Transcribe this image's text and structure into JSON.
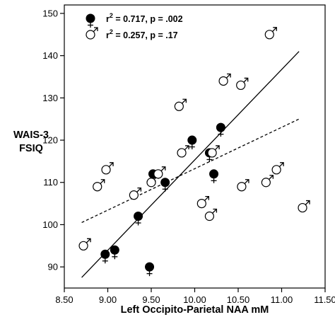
{
  "chart_data": {
    "type": "scatter",
    "title": "",
    "xlabel": "Left Occipito-Parietal NAA mM",
    "ylabel": [
      "WAIS-3",
      "FSIQ"
    ],
    "xlim": [
      8.5,
      11.5
    ],
    "ylim": [
      85,
      152
    ],
    "xticks": [
      "8.50",
      "9.00",
      "9.50",
      "10.00",
      "10.50",
      "11.00",
      "11.50"
    ],
    "yticks": [
      "90",
      "100",
      "110",
      "120",
      "130",
      "140",
      "150"
    ],
    "grid": false,
    "legend_position": "top-left",
    "legend": [
      {
        "symbol": "female",
        "r2_label": "r",
        "r2_sup": "2",
        "stat": " = 0.717, p = .002"
      },
      {
        "symbol": "male",
        "r2_label": "r",
        "r2_sup": "2",
        "stat": " = 0.257, p = .17"
      }
    ],
    "series": [
      {
        "symbol": "female",
        "fit": "solid",
        "fit_line": {
          "x": [
            8.7,
            11.2
          ],
          "y": [
            87.5,
            141
          ]
        },
        "points": [
          {
            "x": 8.97,
            "y": 93
          },
          {
            "x": 9.08,
            "y": 94
          },
          {
            "x": 9.35,
            "y": 102
          },
          {
            "x": 9.48,
            "y": 90
          },
          {
            "x": 9.52,
            "y": 112
          },
          {
            "x": 9.66,
            "y": 110
          },
          {
            "x": 9.97,
            "y": 120
          },
          {
            "x": 10.17,
            "y": 117
          },
          {
            "x": 10.22,
            "y": 112
          },
          {
            "x": 10.3,
            "y": 123
          }
        ]
      },
      {
        "symbol": "male",
        "fit": "dashed",
        "fit_line": {
          "x": [
            8.7,
            11.2
          ],
          "y": [
            100.5,
            125
          ]
        },
        "points": [
          {
            "x": 8.72,
            "y": 95
          },
          {
            "x": 8.88,
            "y": 109
          },
          {
            "x": 8.98,
            "y": 113
          },
          {
            "x": 9.3,
            "y": 107
          },
          {
            "x": 9.5,
            "y": 110
          },
          {
            "x": 9.58,
            "y": 112
          },
          {
            "x": 9.82,
            "y": 128
          },
          {
            "x": 9.85,
            "y": 117
          },
          {
            "x": 10.08,
            "y": 105
          },
          {
            "x": 10.17,
            "y": 102
          },
          {
            "x": 10.2,
            "y": 117
          },
          {
            "x": 10.33,
            "y": 134
          },
          {
            "x": 10.53,
            "y": 133
          },
          {
            "x": 10.54,
            "y": 109
          },
          {
            "x": 10.82,
            "y": 110
          },
          {
            "x": 10.86,
            "y": 145
          },
          {
            "x": 10.94,
            "y": 113
          },
          {
            "x": 11.24,
            "y": 104
          }
        ]
      }
    ]
  }
}
